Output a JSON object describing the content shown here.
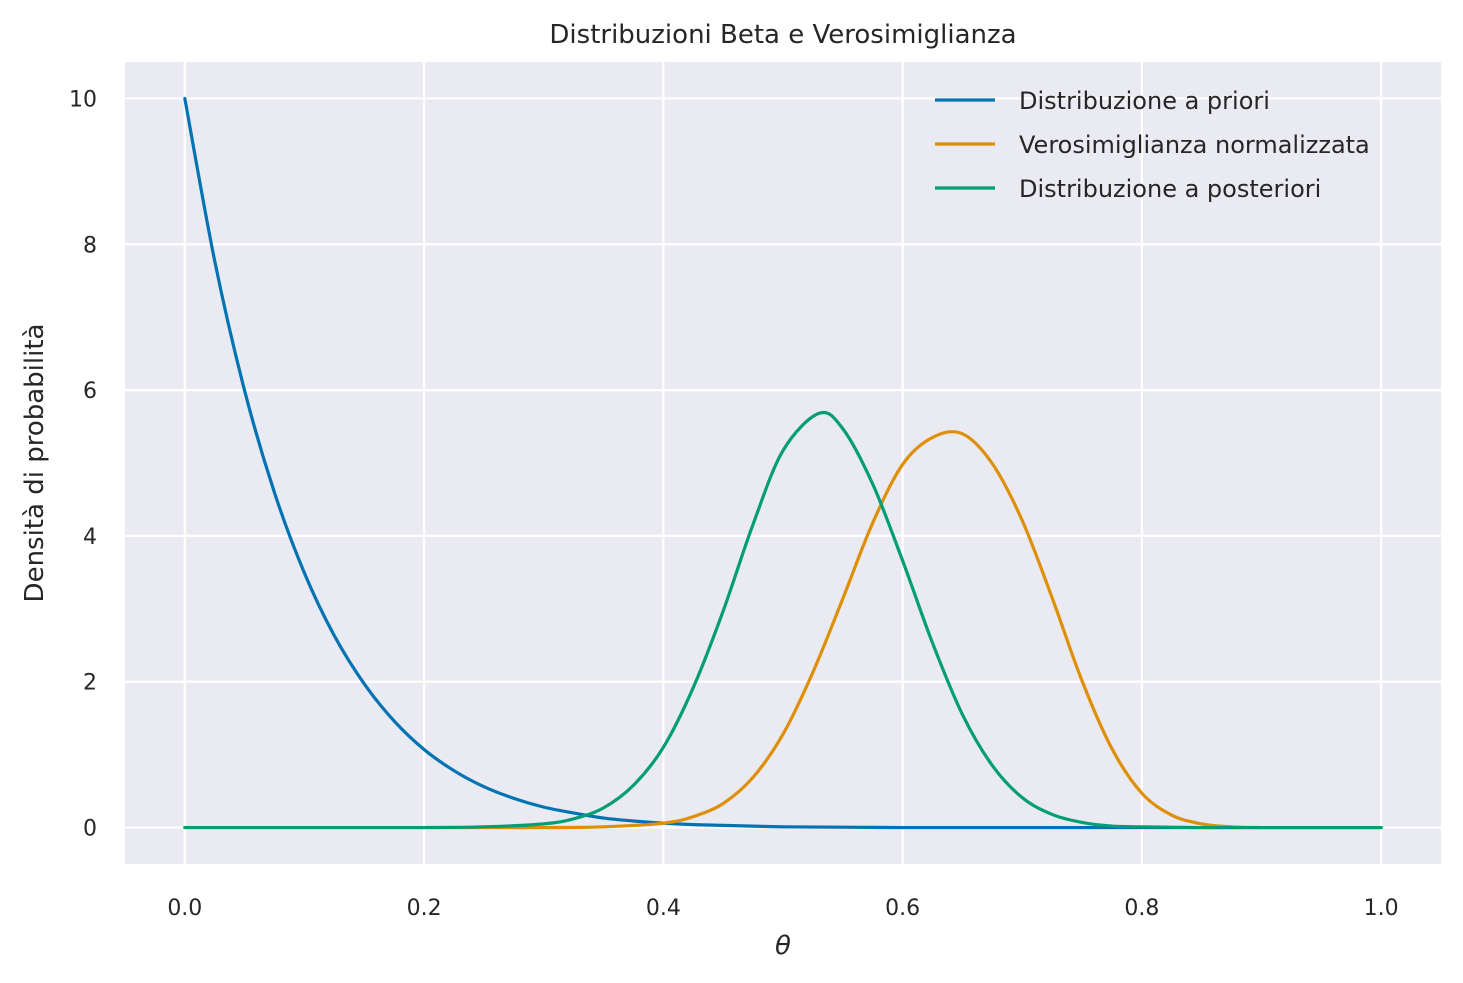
{
  "chart_data": {
    "type": "line",
    "title": "Distribuzioni Beta e Verosimiglianza",
    "xlabel": "θ",
    "ylabel": "Densità di probabilità",
    "xlim": [
      -0.05,
      1.05
    ],
    "ylim": [
      -0.5,
      10.5
    ],
    "xticks": [
      0.0,
      0.2,
      0.4,
      0.6,
      0.8,
      1.0
    ],
    "xtick_labels": [
      "0.0",
      "0.2",
      "0.4",
      "0.6",
      "0.8",
      "1.0"
    ],
    "yticks": [
      0,
      2,
      4,
      6,
      8,
      10
    ],
    "ytick_labels": [
      "0",
      "2",
      "4",
      "6",
      "8",
      "10"
    ],
    "grid": true,
    "legend_position": "top-right",
    "background": "#eaeaf2",
    "series": [
      {
        "name": "Distribuzione a priori",
        "color": "#0173b2",
        "x": [
          0.0,
          0.025,
          0.05,
          0.075,
          0.1,
          0.125,
          0.15,
          0.175,
          0.2,
          0.225,
          0.25,
          0.275,
          0.3,
          0.325,
          0.35,
          0.375,
          0.4,
          0.425,
          0.45,
          0.475,
          0.5,
          0.55,
          0.6,
          0.65,
          0.7,
          0.75,
          0.8,
          0.85,
          0.9,
          0.95,
          1.0
        ],
        "y": [
          10.0,
          7.77,
          5.99,
          4.59,
          3.49,
          2.63,
          1.97,
          1.46,
          1.07,
          0.78,
          0.56,
          0.4,
          0.28,
          0.2,
          0.13,
          0.09,
          0.06,
          0.04,
          0.03,
          0.02,
          0.01,
          0.005,
          0.0,
          0.0,
          0.0,
          0.0,
          0.0,
          0.0,
          0.0,
          0.0,
          0.0
        ]
      },
      {
        "name": "Verosimiglianza normalizzata",
        "color": "#de8f05",
        "x": [
          0.0,
          0.05,
          0.1,
          0.15,
          0.2,
          0.25,
          0.3,
          0.35,
          0.4,
          0.425,
          0.45,
          0.475,
          0.5,
          0.525,
          0.55,
          0.575,
          0.6,
          0.625,
          0.65,
          0.675,
          0.7,
          0.725,
          0.75,
          0.775,
          0.8,
          0.825,
          0.85,
          0.875,
          0.9,
          0.95,
          1.0
        ],
        "y": [
          0.0,
          0.0,
          0.0,
          0.0,
          0.0,
          0.0,
          0.0,
          0.01,
          0.06,
          0.15,
          0.33,
          0.69,
          1.28,
          2.13,
          3.14,
          4.18,
          4.98,
          5.35,
          5.4,
          4.99,
          4.21,
          3.15,
          2.01,
          1.08,
          0.47,
          0.17,
          0.05,
          0.01,
          0.0,
          0.0,
          0.0
        ]
      },
      {
        "name": "Distribuzione a posteriori",
        "color": "#029e73",
        "x": [
          0.0,
          0.05,
          0.1,
          0.15,
          0.2,
          0.25,
          0.3,
          0.325,
          0.35,
          0.375,
          0.4,
          0.425,
          0.45,
          0.475,
          0.5,
          0.53,
          0.55,
          0.575,
          0.6,
          0.625,
          0.65,
          0.675,
          0.7,
          0.725,
          0.75,
          0.775,
          0.8,
          0.85,
          0.9,
          0.95,
          1.0
        ],
        "y": [
          0.0,
          0.0,
          0.0,
          0.0,
          0.0,
          0.01,
          0.05,
          0.12,
          0.27,
          0.58,
          1.1,
          1.92,
          2.97,
          4.16,
          5.17,
          5.68,
          5.47,
          4.71,
          3.66,
          2.53,
          1.55,
          0.85,
          0.41,
          0.18,
          0.07,
          0.02,
          0.01,
          0.0,
          0.0,
          0.0,
          0.0
        ]
      }
    ]
  }
}
